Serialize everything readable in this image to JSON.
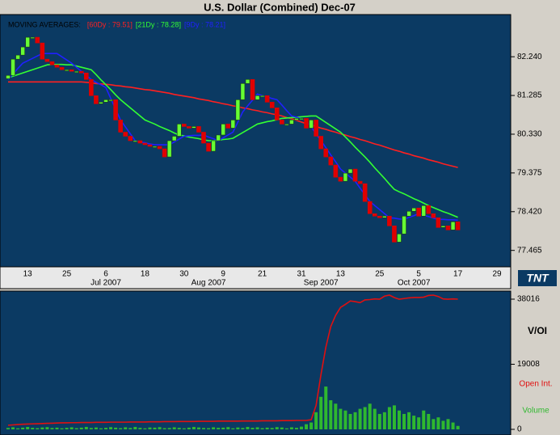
{
  "chart_data": [
    {
      "type": "candlestick",
      "title": "U.S. Dollar (Combined) Dec-07",
      "legend_title": "MOVING AVERAGES:",
      "up_color": "#66ff33",
      "down_color": "#e00000",
      "categories": [
        null,
        null,
        null,
        null,
        "13",
        null,
        null,
        null,
        null,
        null,
        null,
        null,
        "25",
        null,
        null,
        null,
        null,
        null,
        null,
        null,
        "6",
        null,
        null,
        null,
        null,
        null,
        null,
        null,
        "18",
        null,
        null,
        null,
        null,
        null,
        null,
        null,
        "30",
        null,
        null,
        null,
        null,
        null,
        null,
        null,
        "9",
        null,
        null,
        null,
        null,
        null,
        null,
        null,
        "21",
        null,
        null,
        null,
        null,
        null,
        null,
        null,
        "31",
        null,
        null,
        null,
        null,
        null,
        null,
        null,
        "13",
        null,
        null,
        null,
        null,
        null,
        null,
        null,
        "25",
        null,
        null,
        null,
        null,
        null,
        null,
        null,
        "5",
        null,
        null,
        null,
        null,
        null,
        null,
        null,
        "17",
        null,
        null,
        null,
        null,
        null,
        null,
        null,
        "29"
      ],
      "month_labels": [
        null,
        null,
        null,
        null,
        null,
        null,
        null,
        null,
        null,
        null,
        null,
        null,
        null,
        null,
        null,
        null,
        null,
        null,
        null,
        null,
        "Jul 2007",
        null,
        null,
        null,
        null,
        null,
        null,
        null,
        null,
        null,
        null,
        null,
        null,
        null,
        null,
        null,
        null,
        null,
        null,
        null,
        null,
        "Aug 2007",
        null,
        null,
        null,
        null,
        null,
        null,
        null,
        null,
        null,
        null,
        null,
        null,
        null,
        null,
        null,
        null,
        null,
        null,
        null,
        null,
        null,
        null,
        "Sep 2007",
        null,
        null,
        null,
        null,
        null,
        null,
        null,
        null,
        null,
        null,
        null,
        null,
        null,
        null,
        null,
        null,
        null,
        null,
        "Oct 2007",
        null,
        null,
        null,
        null,
        null,
        null,
        null,
        null,
        null,
        null,
        null,
        null,
        null,
        null,
        null,
        null,
        null
      ],
      "open": [
        81.7,
        81.78,
        82.18,
        82.28,
        82.48,
        82.72,
        82.72,
        82.58,
        82.18,
        82.12,
        82.04,
        81.98,
        81.92,
        81.92,
        81.88,
        81.88,
        81.84,
        81.68,
        81.28,
        81.08,
        81.12,
        81.18,
        81.18,
        80.68,
        80.38,
        80.28,
        80.17,
        80.17,
        80.11,
        80.07,
        80.03,
        80.03,
        79.97,
        79.77,
        80.17,
        80.28,
        80.58,
        80.52,
        80.48,
        80.52,
        80.38,
        80.11,
        79.91,
        80.17,
        80.31,
        80.58,
        80.48,
        80.68,
        81.18,
        81.58,
        81.68,
        81.18,
        81.28,
        81.28,
        81.12,
        80.98,
        80.68,
        80.58,
        80.58,
        80.68,
        80.72,
        80.72,
        80.48,
        80.68,
        80.28,
        79.97,
        79.77,
        79.57,
        79.27,
        79.17,
        79.37,
        79.47,
        79.17,
        79.11,
        78.67,
        78.37,
        78.31,
        78.27,
        78.31,
        78.07,
        77.67,
        77.87,
        78.31,
        78.43,
        78.51,
        78.31,
        78.57,
        78.37,
        78.27,
        78.03,
        78.07,
        77.97,
        78.17,
        null,
        null,
        null,
        null,
        null,
        null,
        null,
        null
      ],
      "close": [
        81.78,
        82.18,
        82.28,
        82.48,
        82.72,
        82.72,
        82.58,
        82.18,
        82.12,
        82.04,
        81.98,
        81.92,
        81.92,
        81.88,
        81.88,
        81.84,
        81.68,
        81.28,
        81.08,
        81.12,
        81.18,
        81.18,
        80.68,
        80.38,
        80.28,
        80.17,
        80.17,
        80.11,
        80.07,
        80.03,
        80.03,
        79.97,
        79.77,
        80.17,
        80.28,
        80.58,
        80.52,
        80.48,
        80.52,
        80.38,
        80.11,
        79.91,
        80.17,
        80.31,
        80.58,
        80.48,
        80.68,
        81.18,
        81.58,
        81.68,
        81.18,
        81.28,
        81.28,
        81.12,
        80.98,
        80.68,
        80.58,
        80.58,
        80.68,
        80.72,
        80.72,
        80.48,
        80.68,
        80.28,
        79.97,
        79.77,
        79.57,
        79.27,
        79.17,
        79.37,
        79.47,
        79.17,
        79.11,
        78.67,
        78.37,
        78.31,
        78.27,
        78.31,
        78.07,
        77.67,
        77.87,
        78.31,
        78.43,
        78.51,
        78.31,
        78.57,
        78.37,
        78.27,
        78.03,
        78.07,
        77.97,
        78.17,
        77.97,
        null,
        null,
        null,
        null,
        null,
        null,
        null,
        null
      ],
      "series": [
        {
          "name": "[60Dy : 79.51]",
          "color": "#ff2020",
          "values": [
            81.62,
            81.62,
            81.62,
            81.62,
            81.62,
            81.62,
            81.62,
            81.62,
            81.62,
            81.62,
            81.62,
            81.62,
            81.62,
            81.62,
            81.62,
            81.62,
            81.61,
            81.6,
            81.58,
            81.57,
            81.56,
            81.55,
            81.53,
            81.52,
            81.5,
            81.49,
            81.47,
            81.45,
            81.43,
            81.42,
            81.4,
            81.38,
            81.36,
            81.34,
            81.31,
            81.29,
            81.27,
            81.25,
            81.23,
            81.2,
            81.18,
            81.16,
            81.13,
            81.11,
            81.08,
            81.06,
            81.03,
            81.01,
            80.98,
            80.96,
            80.93,
            80.91,
            80.88,
            80.86,
            80.83,
            80.81,
            80.78,
            80.74,
            80.71,
            80.67,
            80.63,
            80.59,
            80.56,
            80.52,
            80.48,
            80.45,
            80.41,
            80.38,
            80.34,
            80.31,
            80.27,
            80.24,
            80.2,
            80.17,
            80.13,
            80.09,
            80.06,
            80.02,
            79.98,
            79.94,
            79.91,
            79.87,
            79.84,
            79.8,
            79.77,
            79.74,
            79.7,
            79.67,
            79.64,
            79.6,
            79.57,
            79.54,
            79.51,
            null,
            null,
            null,
            null,
            null,
            null,
            null,
            null
          ]
        },
        {
          "name": "[21Dy : 78.28]",
          "color": "#33ff33",
          "values": [
            81.72,
            81.76,
            81.8,
            81.84,
            81.88,
            81.92,
            81.96,
            82.0,
            82.04,
            82.05,
            82.05,
            82.05,
            82.04,
            82.04,
            82.01,
            81.98,
            81.95,
            81.92,
            81.8,
            81.67,
            81.55,
            81.43,
            81.3,
            81.18,
            81.08,
            80.98,
            80.88,
            80.78,
            80.68,
            80.63,
            80.58,
            80.52,
            80.47,
            80.42,
            80.36,
            80.31,
            80.29,
            80.26,
            80.24,
            80.22,
            80.19,
            80.17,
            80.17,
            80.18,
            80.2,
            80.21,
            80.23,
            80.3,
            80.37,
            80.44,
            80.51,
            80.58,
            80.61,
            80.64,
            80.66,
            80.69,
            80.72,
            80.73,
            80.74,
            80.75,
            80.76,
            80.77,
            80.78,
            80.78,
            80.7,
            80.62,
            80.54,
            80.46,
            80.38,
            80.26,
            80.14,
            80.01,
            79.89,
            79.77,
            79.64,
            79.5,
            79.37,
            79.24,
            79.1,
            78.97,
            78.91,
            78.86,
            78.8,
            78.74,
            78.69,
            78.63,
            78.57,
            78.52,
            78.47,
            78.42,
            78.38,
            78.33,
            78.28,
            null,
            null,
            null,
            null,
            null,
            null,
            null,
            null
          ]
        },
        {
          "name": "[9Dy : 78.21]",
          "color": "#2020ff",
          "values": [
            81.68,
            81.81,
            81.95,
            82.08,
            82.14,
            82.2,
            82.26,
            82.32,
            82.32,
            82.32,
            82.32,
            82.24,
            82.16,
            82.08,
            81.98,
            81.88,
            81.78,
            81.68,
            81.61,
            81.55,
            81.48,
            81.21,
            80.95,
            80.68,
            80.51,
            80.34,
            80.17,
            80.14,
            80.12,
            80.09,
            80.07,
            80.07,
            80.07,
            80.07,
            80.14,
            80.21,
            80.28,
            80.29,
            80.3,
            80.3,
            80.31,
            80.26,
            80.22,
            80.17,
            80.24,
            80.31,
            80.38,
            80.63,
            80.88,
            81.03,
            81.17,
            81.32,
            81.28,
            81.25,
            81.21,
            81.18,
            81.05,
            80.91,
            80.78,
            80.75,
            80.71,
            80.68,
            80.51,
            80.34,
            80.17,
            80.0,
            79.82,
            79.65,
            79.47,
            79.37,
            79.27,
            79.17,
            79.0,
            78.84,
            78.67,
            78.57,
            78.47,
            78.37,
            78.27,
            78.26,
            78.24,
            78.23,
            78.28,
            78.32,
            78.37,
            78.33,
            78.3,
            78.26,
            78.23,
            78.23,
            78.22,
            78.22,
            78.21,
            null,
            null,
            null,
            null,
            null,
            null,
            null,
            null
          ]
        }
      ],
      "ylim": [
        77.06,
        83.28
      ],
      "yticks": [
        {
          "value": 82.24,
          "label": "82.240"
        },
        81.285,
        {
          "value": 80.33,
          "label": "80.330"
        },
        79.375,
        {
          "value": 78.42,
          "label": "78.420"
        },
        77.465
      ]
    },
    {
      "type": "volume",
      "title": "V/OI",
      "series": [
        {
          "name": "Open Int.",
          "color": "#e01010",
          "style": "line",
          "values": [
            1200,
            1300,
            1400,
            1500,
            1550,
            1600,
            1650,
            1700,
            1750,
            1800,
            1850,
            1900,
            1900,
            1950,
            1950,
            2000,
            2000,
            2000,
            2050,
            2050,
            2050,
            2100,
            2100,
            2100,
            2100,
            2150,
            2150,
            2150,
            2150,
            2200,
            2200,
            2200,
            2250,
            2250,
            2250,
            2300,
            2300,
            2300,
            2300,
            2350,
            2350,
            2350,
            2350,
            2400,
            2400,
            2400,
            2400,
            2400,
            2450,
            2450,
            2450,
            2450,
            2500,
            2500,
            2500,
            2500,
            2550,
            2550,
            2550,
            2600,
            2600,
            2600,
            2800,
            7000,
            16000,
            24000,
            30000,
            33300,
            35600,
            36500,
            37500,
            37300,
            37000,
            37800,
            37900,
            38100,
            38000,
            38900,
            39200,
            38500,
            38000,
            38200,
            38400,
            38500,
            38500,
            38600,
            39100,
            39200,
            38800,
            38100,
            38000,
            38100,
            38016,
            null,
            null,
            null,
            null,
            null,
            null,
            null,
            null
          ]
        },
        {
          "name": "Volume",
          "color": "#2fb82f",
          "style": "bar",
          "values": [
            400,
            600,
            300,
            500,
            700,
            450,
            350,
            550,
            650,
            400,
            500,
            300,
            450,
            600,
            350,
            500,
            700,
            400,
            550,
            300,
            450,
            650,
            500,
            350,
            600,
            400,
            700,
            450,
            300,
            550,
            500,
            650,
            350,
            400,
            600,
            450,
            300,
            500,
            700,
            550,
            400,
            350,
            600,
            450,
            500,
            650,
            300,
            550,
            400,
            700,
            450,
            600,
            350,
            500,
            400,
            650,
            550,
            300,
            600,
            450,
            800,
            1500,
            2000,
            5000,
            9500,
            12500,
            8500,
            7500,
            6000,
            5500,
            4500,
            5000,
            6000,
            6500,
            7500,
            6000,
            4500,
            5000,
            6500,
            7000,
            5500,
            4500,
            5000,
            4000,
            3500,
            5500,
            4500,
            3000,
            3500,
            2500,
            3000,
            2000,
            1000,
            null,
            null,
            null,
            null,
            null,
            null,
            null,
            null
          ]
        }
      ],
      "ylim": [
        -1650,
        40380
      ],
      "yticks": [
        0,
        19008,
        38016
      ]
    }
  ],
  "logo": "TNT"
}
